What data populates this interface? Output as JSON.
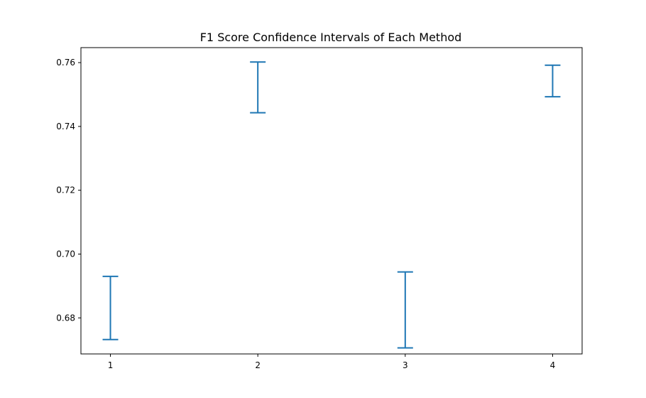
{
  "chart_data": {
    "type": "errorbar",
    "title": "F1 Score Confidence Intervals of Each Method",
    "xlabel": "",
    "ylabel": "",
    "x": [
      1,
      2,
      3,
      4
    ],
    "intervals": [
      {
        "x": 1,
        "low": 0.6732,
        "high": 0.693
      },
      {
        "x": 2,
        "low": 0.7443,
        "high": 0.7602
      },
      {
        "x": 3,
        "low": 0.6706,
        "high": 0.6944
      },
      {
        "x": 4,
        "low": 0.7493,
        "high": 0.7592
      }
    ],
    "xlim": [
      0.8,
      4.2
    ],
    "ylim": [
      0.6687,
      0.7647
    ],
    "xticks": [
      "1",
      "2",
      "3",
      "4"
    ],
    "yticks": [
      "0.68",
      "0.70",
      "0.72",
      "0.74",
      "0.76"
    ],
    "color": "#1f77b4",
    "grid": false,
    "legend": "none"
  }
}
